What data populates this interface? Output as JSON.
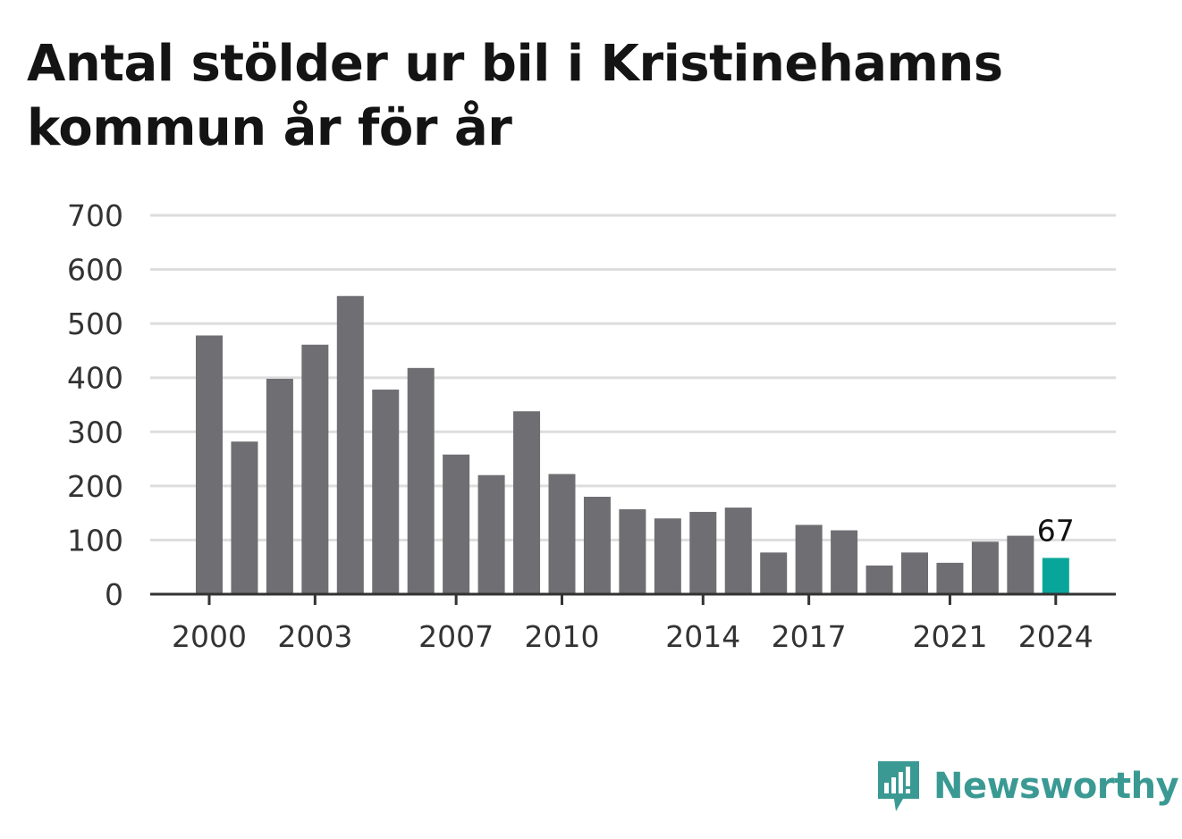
{
  "title": "Antal stölder ur bil i Kristinehamns kommun år för år",
  "brand": {
    "name": "Newsworthy",
    "color": "#3a9a93"
  },
  "colors": {
    "bar": "#6f6e73",
    "highlight": "#0aa59a",
    "grid": "#dddddd",
    "axis": "#333333"
  },
  "chart_data": {
    "type": "bar",
    "title": "Antal stölder ur bil i Kristinehamns kommun år för år",
    "categories": [
      "2000",
      "2001",
      "2002",
      "2003",
      "2004",
      "2005",
      "2006",
      "2007",
      "2008",
      "2009",
      "2010",
      "2011",
      "2012",
      "2013",
      "2014",
      "2015",
      "2016",
      "2017",
      "2018",
      "2019",
      "2020",
      "2021",
      "2022",
      "2023",
      "2024"
    ],
    "values": [
      478,
      282,
      398,
      461,
      551,
      378,
      418,
      258,
      220,
      338,
      222,
      180,
      157,
      140,
      152,
      160,
      77,
      128,
      118,
      53,
      77,
      58,
      97,
      108,
      67
    ],
    "xtick_labels": [
      "2000",
      "2003",
      "2007",
      "2010",
      "2014",
      "2017",
      "2021",
      "2024"
    ],
    "yticks": [
      0,
      100,
      200,
      300,
      400,
      500,
      600,
      700
    ],
    "ylim": [
      0,
      700
    ],
    "highlight_index": 24,
    "data_labels": [
      {
        "index": 24,
        "text": "67"
      }
    ],
    "grid": true,
    "legend": "none"
  }
}
